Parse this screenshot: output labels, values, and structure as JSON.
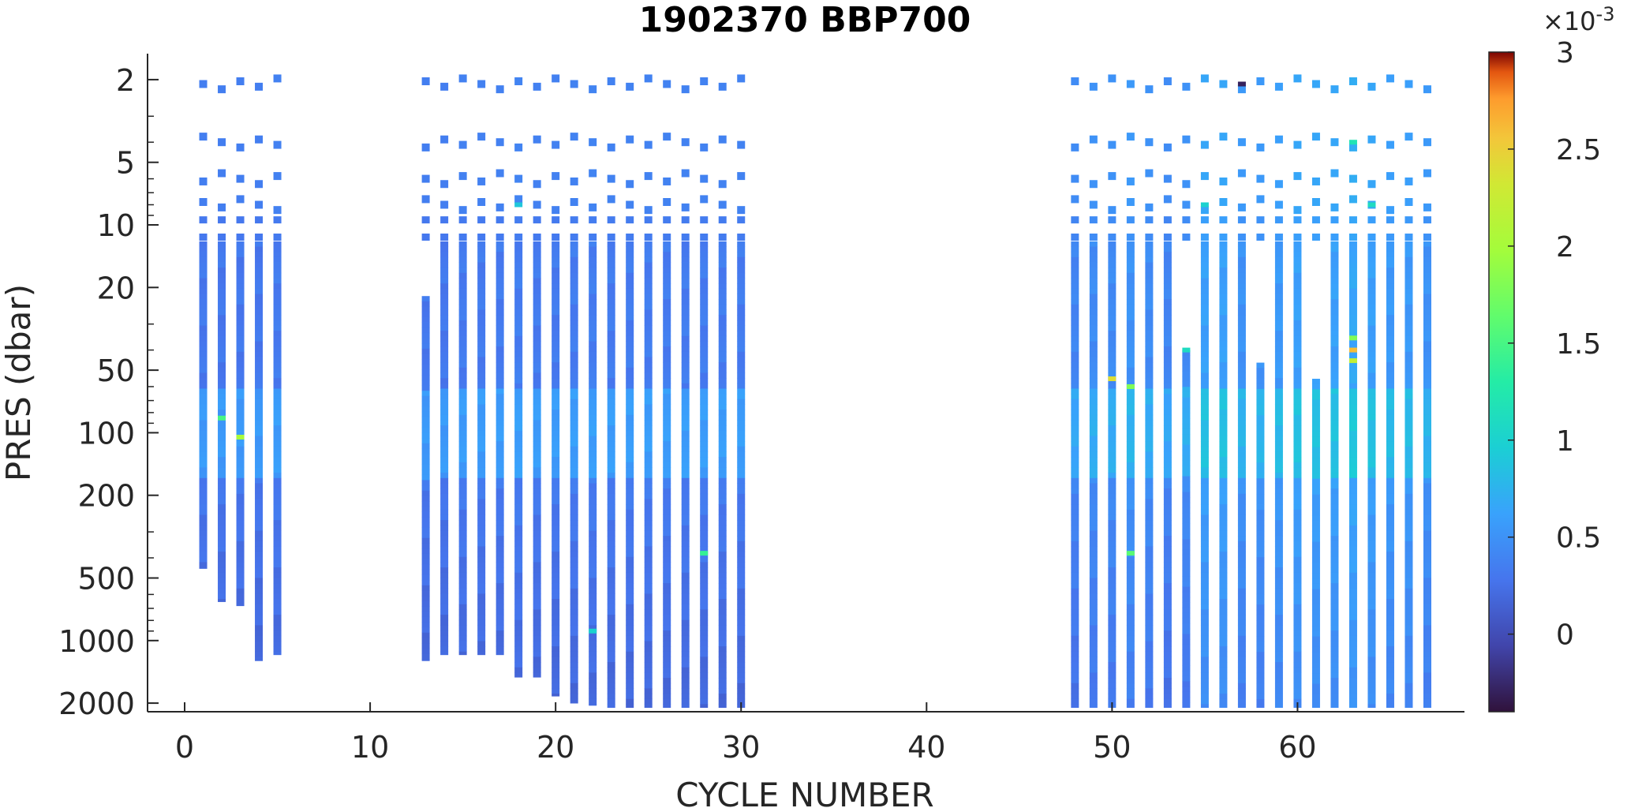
{
  "chart_data": {
    "type": "scatter",
    "title": "1902370 BBP700",
    "xlabel": "CYCLE NUMBER",
    "ylabel": "PRES (dbar)",
    "xlim": [
      -2,
      69
    ],
    "ylim": [
      1.5,
      2200
    ],
    "yscale": "log",
    "y_reversed": true,
    "x_ticks": [
      0,
      10,
      20,
      30,
      40,
      50,
      60
    ],
    "y_ticks": [
      2,
      5,
      10,
      20,
      50,
      100,
      200,
      500,
      1000,
      2000
    ],
    "colorbar": {
      "colormap": "turbo",
      "clim": [
        -0.0004,
        0.003
      ],
      "ticks": [
        0,
        0.5,
        1,
        1.5,
        2,
        2.5,
        3
      ],
      "exponent_label": "×10",
      "exponent_value": "-3"
    },
    "profiles": [
      {
        "cycle": 1,
        "max_pres": 450,
        "base": 0.3
      },
      {
        "cycle": 2,
        "max_pres": 650,
        "base": 0.3
      },
      {
        "cycle": 3,
        "max_pres": 680,
        "base": 0.3
      },
      {
        "cycle": 4,
        "max_pres": 1250,
        "base": 0.3
      },
      {
        "cycle": 5,
        "max_pres": 1170,
        "base": 0.32
      },
      {
        "cycle": 13,
        "max_pres": 1250,
        "base": 0.3,
        "min_pres": 22
      },
      {
        "cycle": 14,
        "max_pres": 1170,
        "base": 0.3
      },
      {
        "cycle": 15,
        "max_pres": 1170,
        "base": 0.32
      },
      {
        "cycle": 16,
        "max_pres": 1170,
        "base": 0.32
      },
      {
        "cycle": 17,
        "max_pres": 1170,
        "base": 0.32
      },
      {
        "cycle": 18,
        "max_pres": 1500,
        "base": 0.34
      },
      {
        "cycle": 19,
        "max_pres": 1500,
        "base": 0.32
      },
      {
        "cycle": 20,
        "max_pres": 1850,
        "base": 0.32
      },
      {
        "cycle": 21,
        "max_pres": 2000,
        "base": 0.33
      },
      {
        "cycle": 22,
        "max_pres": 2050,
        "base": 0.34
      },
      {
        "cycle": 23,
        "max_pres": 2100,
        "base": 0.33
      },
      {
        "cycle": 24,
        "max_pres": 2100,
        "base": 0.33
      },
      {
        "cycle": 25,
        "max_pres": 2100,
        "base": 0.33
      },
      {
        "cycle": 26,
        "max_pres": 2100,
        "base": 0.33
      },
      {
        "cycle": 27,
        "max_pres": 2100,
        "base": 0.33
      },
      {
        "cycle": 28,
        "max_pres": 2100,
        "base": 0.33
      },
      {
        "cycle": 29,
        "max_pres": 2100,
        "base": 0.33
      },
      {
        "cycle": 30,
        "max_pres": 2100,
        "base": 0.33
      },
      {
        "cycle": 48,
        "max_pres": 2100,
        "base": 0.4
      },
      {
        "cycle": 49,
        "max_pres": 2100,
        "base": 0.45
      },
      {
        "cycle": 50,
        "max_pres": 2100,
        "base": 0.45
      },
      {
        "cycle": 51,
        "max_pres": 2100,
        "base": 0.5
      },
      {
        "cycle": 52,
        "max_pres": 2100,
        "base": 0.45
      },
      {
        "cycle": 53,
        "max_pres": 2100,
        "base": 0.4
      },
      {
        "cycle": 54,
        "max_pres": 2100,
        "base": 0.45,
        "min_pres": 40
      },
      {
        "cycle": 55,
        "max_pres": 2100,
        "base": 0.6
      },
      {
        "cycle": 56,
        "max_pres": 2100,
        "base": 0.6
      },
      {
        "cycle": 57,
        "max_pres": 2100,
        "base": 0.5
      },
      {
        "cycle": 58,
        "max_pres": 2100,
        "base": 0.5,
        "min_pres": 46
      },
      {
        "cycle": 59,
        "max_pres": 2100,
        "base": 0.55
      },
      {
        "cycle": 60,
        "max_pres": 2100,
        "base": 0.6
      },
      {
        "cycle": 61,
        "max_pres": 2100,
        "base": 0.6,
        "min_pres": 55
      },
      {
        "cycle": 62,
        "max_pres": 2100,
        "base": 0.6
      },
      {
        "cycle": 63,
        "max_pres": 2100,
        "base": 0.65
      },
      {
        "cycle": 64,
        "max_pres": 2100,
        "base": 0.6
      },
      {
        "cycle": 65,
        "max_pres": 2100,
        "base": 0.55
      },
      {
        "cycle": 66,
        "max_pres": 2100,
        "base": 0.55
      },
      {
        "cycle": 67,
        "max_pres": 2100,
        "base": 0.5
      }
    ],
    "sparse_levels": [
      2.1,
      4.0,
      6.0,
      8.0
    ],
    "notable_points": [
      {
        "cycle": 2,
        "pres": 85,
        "value": 1.5
      },
      {
        "cycle": 3,
        "pres": 105,
        "value": 2.0
      },
      {
        "cycle": 28,
        "pres": 380,
        "value": 1.4
      },
      {
        "cycle": 50,
        "pres": 55,
        "value": 2.4
      },
      {
        "cycle": 51,
        "pres": 60,
        "value": 1.8
      },
      {
        "cycle": 51,
        "pres": 380,
        "value": 1.6
      },
      {
        "cycle": 57,
        "pres": 2.1,
        "value": -0.3
      },
      {
        "cycle": 63,
        "pres": 40,
        "value": 2.6
      },
      {
        "cycle": 63,
        "pres": 45,
        "value": 2.2
      },
      {
        "cycle": 63,
        "pres": 35,
        "value": 1.8
      },
      {
        "cycle": 18,
        "pres": 8.0,
        "value": 0.9
      },
      {
        "cycle": 55,
        "pres": 8.0,
        "value": 1.0
      },
      {
        "cycle": 63,
        "pres": 4.0,
        "value": 1.2
      },
      {
        "cycle": 64,
        "pres": 8.0,
        "value": 1.1
      },
      {
        "cycle": 54,
        "pres": 40,
        "value": 1.1
      },
      {
        "cycle": 22,
        "pres": 900,
        "value": 1.0
      }
    ]
  }
}
